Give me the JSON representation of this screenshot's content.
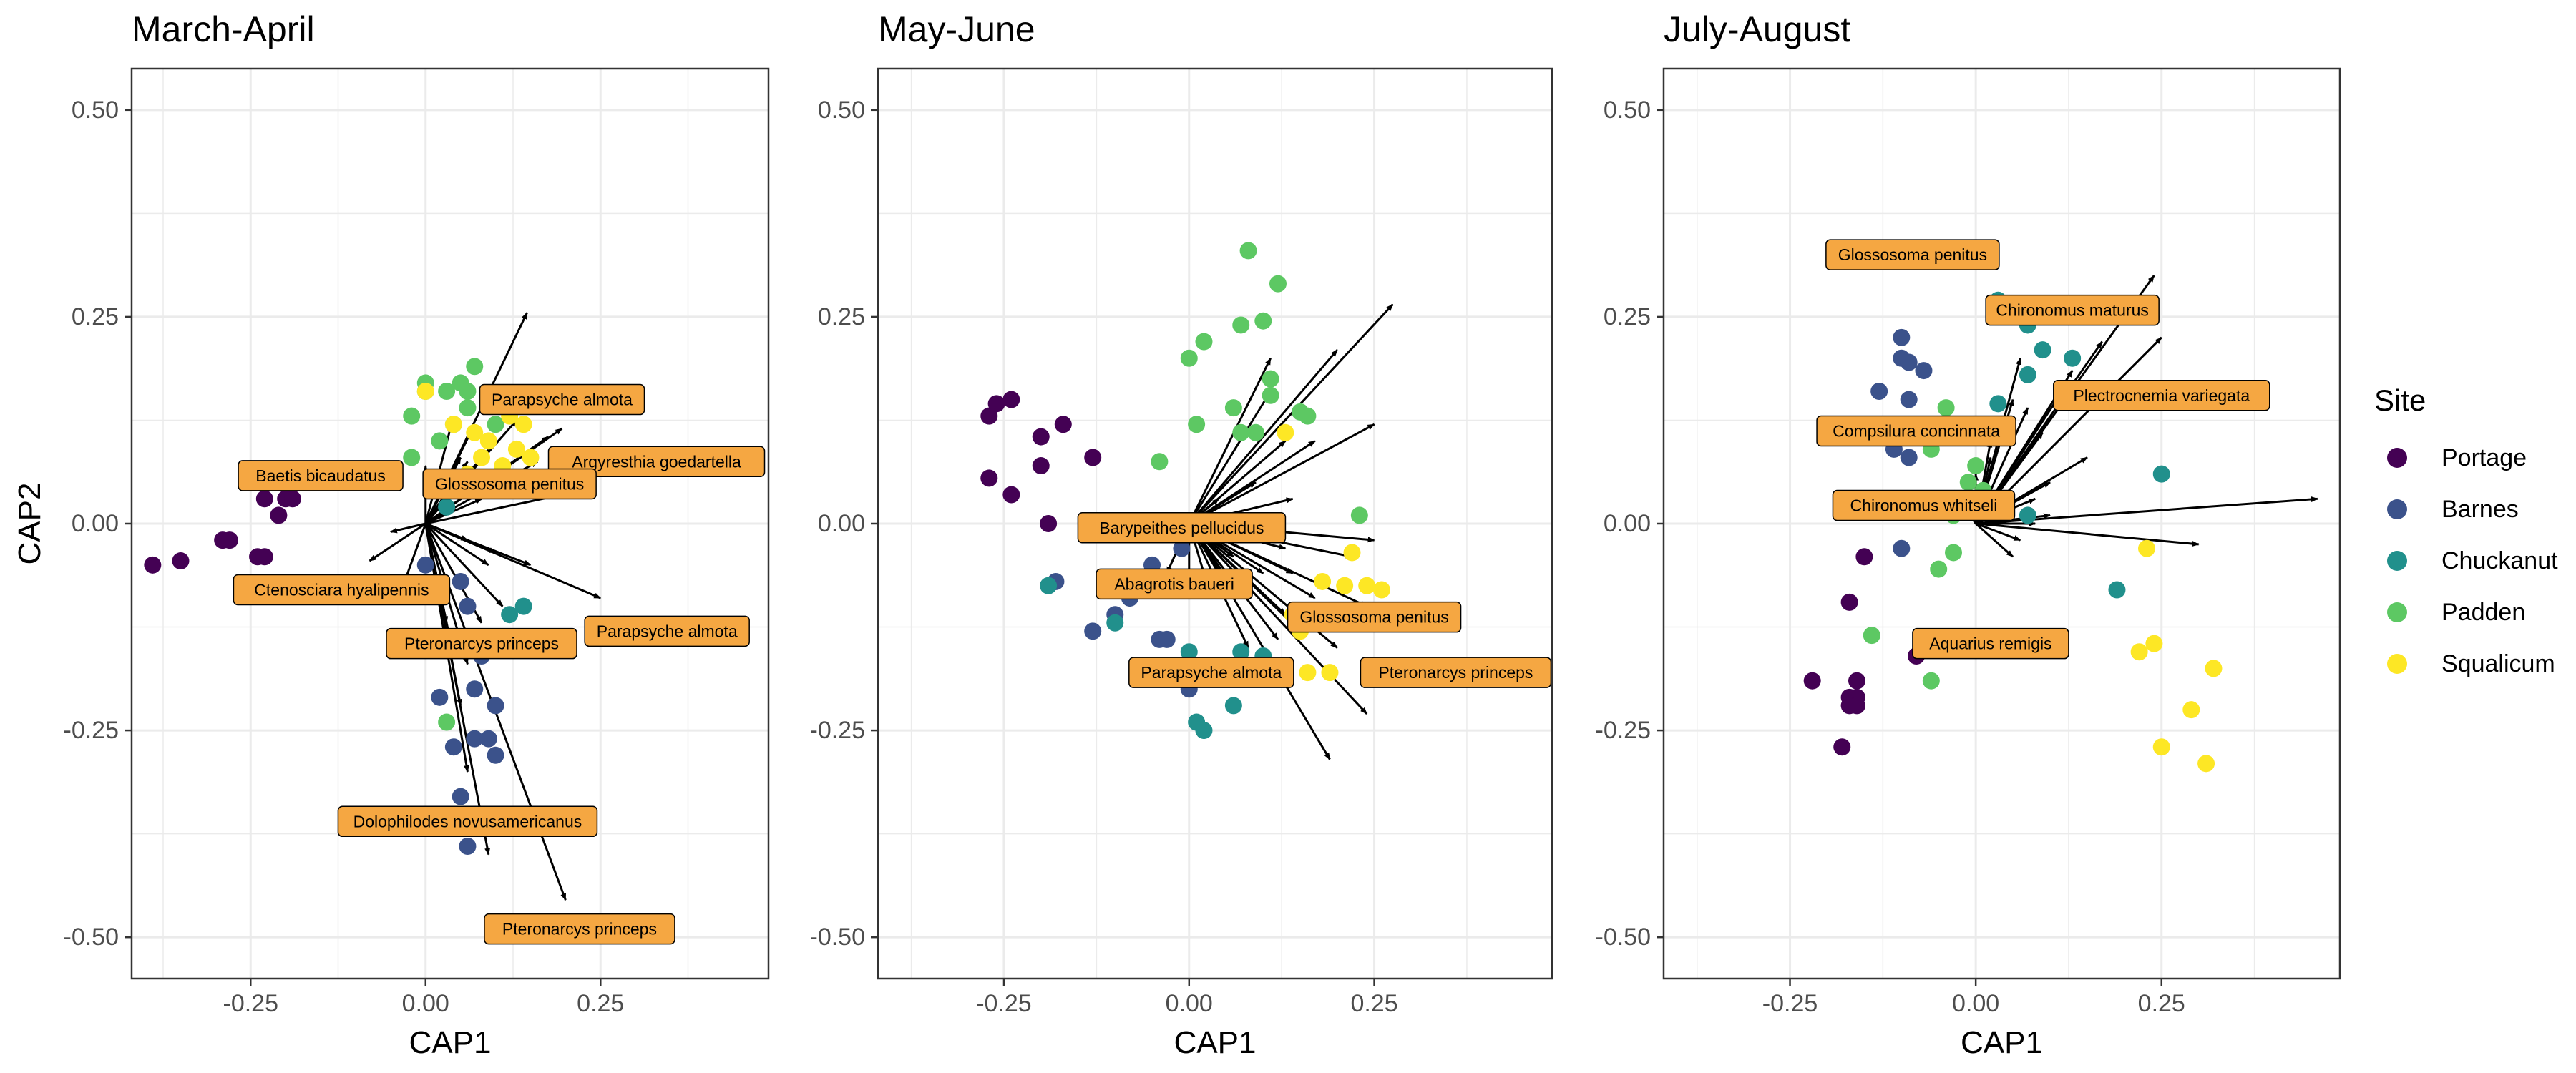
{
  "figure": {
    "y_axis_label": "CAP2",
    "legend_title": "Site"
  },
  "legend": {
    "title": "Site",
    "items": [
      {
        "name": "Portage",
        "color": "#440154"
      },
      {
        "name": "Barnes",
        "color": "#3B528B"
      },
      {
        "name": "Chuckanut",
        "color": "#21908C"
      },
      {
        "name": "Padden",
        "color": "#5DC863"
      },
      {
        "name": "Squalicum",
        "color": "#FDE725"
      }
    ]
  },
  "style": {
    "label_fill": "#F5A742",
    "arrow_color": "#000000",
    "grid_color": "#EBEBEB"
  },
  "chart_data": [
    {
      "type": "scatter",
      "title": "March-April",
      "xlabel": "CAP1",
      "ylabel": "CAP2",
      "xlim": [
        -0.42,
        0.49
      ],
      "ylim": [
        -0.55,
        0.55
      ],
      "xticks": [
        "-0.25",
        "0.00",
        "0.25"
      ],
      "yticks": [
        "0.50",
        "0.25",
        "0.00",
        "-0.25",
        "-0.50"
      ],
      "grid": true,
      "legend": "right",
      "points": {
        "Portage": [
          [
            -0.39,
            -0.05
          ],
          [
            -0.35,
            -0.045
          ],
          [
            -0.29,
            -0.02
          ],
          [
            -0.28,
            -0.02
          ],
          [
            -0.24,
            -0.04
          ],
          [
            -0.23,
            -0.04
          ],
          [
            -0.23,
            0.03
          ],
          [
            -0.22,
            0.06
          ],
          [
            -0.2,
            0.03
          ],
          [
            -0.21,
            0.01
          ],
          [
            -0.19,
            0.03
          ]
        ],
        "Barnes": [
          [
            0.0,
            -0.05
          ],
          [
            0.02,
            -0.08
          ],
          [
            0.05,
            -0.07
          ],
          [
            0.06,
            -0.1
          ],
          [
            0.03,
            -0.14
          ],
          [
            0.08,
            -0.16
          ],
          [
            0.02,
            -0.21
          ],
          [
            0.07,
            -0.2
          ],
          [
            0.1,
            -0.22
          ],
          [
            0.04,
            -0.27
          ],
          [
            0.07,
            -0.26
          ],
          [
            0.1,
            -0.28
          ],
          [
            0.05,
            -0.33
          ],
          [
            0.06,
            -0.39
          ],
          [
            0.09,
            -0.26
          ]
        ],
        "Chuckanut": [
          [
            0.12,
            -0.11
          ],
          [
            0.14,
            -0.1
          ],
          [
            0.06,
            0.04
          ],
          [
            0.03,
            0.02
          ],
          [
            0.09,
            -0.14
          ]
        ],
        "Padden": [
          [
            0.0,
            0.17
          ],
          [
            0.03,
            0.16
          ],
          [
            0.07,
            0.19
          ],
          [
            0.05,
            0.17
          ],
          [
            -0.02,
            0.08
          ],
          [
            0.02,
            0.1
          ],
          [
            0.06,
            0.14
          ],
          [
            0.04,
            0.12
          ],
          [
            0.01,
            0.05
          ],
          [
            -0.02,
            0.13
          ],
          [
            0.1,
            0.12
          ],
          [
            0.03,
            -0.24
          ],
          [
            0.06,
            0.16
          ],
          [
            0.0,
            0.16
          ]
        ],
        "Squalicum": [
          [
            0.0,
            0.16
          ],
          [
            0.04,
            0.12
          ],
          [
            0.07,
            0.11
          ],
          [
            0.09,
            0.1
          ],
          [
            0.12,
            0.13
          ],
          [
            0.14,
            0.12
          ],
          [
            0.13,
            0.09
          ],
          [
            0.11,
            0.07
          ],
          [
            0.08,
            0.08
          ],
          [
            0.06,
            0.06
          ],
          [
            0.15,
            0.08
          ],
          [
            0.13,
            0.04
          ]
        ]
      },
      "arrows": [
        [
          0.145,
          0.255
        ],
        [
          0.195,
          0.035
        ],
        [
          0.195,
          0.115
        ],
        [
          0.175,
          0.105
        ],
        [
          0.16,
          0.075
        ],
        [
          0.13,
          0.125
        ],
        [
          0.25,
          -0.09
        ],
        [
          0.1,
          -0.035
        ],
        [
          0.09,
          -0.05
        ],
        [
          0.11,
          -0.1
        ],
        [
          0.15,
          -0.05
        ],
        [
          0.2,
          -0.455
        ],
        [
          0.09,
          -0.4
        ],
        [
          0.06,
          -0.3
        ],
        [
          0.05,
          -0.22
        ],
        [
          0.04,
          -0.16
        ],
        [
          0.08,
          -0.12
        ],
        [
          0.06,
          -0.17
        ],
        [
          0.03,
          -0.12
        ],
        [
          -0.03,
          -0.07
        ],
        [
          -0.08,
          -0.045
        ],
        [
          -0.05,
          -0.01
        ],
        [
          0.0,
          0.07
        ],
        [
          0.04,
          0.13
        ],
        [
          0.07,
          0.12
        ],
        [
          0.1,
          0.1
        ],
        [
          0.06,
          0.075
        ],
        [
          0.05,
          0.08
        ],
        [
          0.08,
          0.03
        ],
        [
          0.06,
          -0.02
        ]
      ],
      "labels": [
        {
          "text": "Parapsyche almota",
          "x": 0.195,
          "y": 0.15
        },
        {
          "text": "Argyresthia goedartella",
          "x": 0.33,
          "y": 0.075
        },
        {
          "text": "Baetis bicaudatus",
          "x": -0.15,
          "y": 0.058
        },
        {
          "text": "Glossosoma penitus",
          "x": 0.12,
          "y": 0.048
        },
        {
          "text": "Ctenosciara hyalipennis",
          "x": -0.12,
          "y": -0.08
        },
        {
          "text": "Parapsyche almota",
          "x": 0.345,
          "y": -0.13
        },
        {
          "text": "Pteronarcys princeps",
          "x": 0.08,
          "y": -0.145
        },
        {
          "text": "Dolophilodes novusamericanus",
          "x": 0.06,
          "y": -0.36
        },
        {
          "text": "Pteronarcys princeps",
          "x": 0.22,
          "y": -0.49
        }
      ]
    },
    {
      "type": "scatter",
      "title": "May-June",
      "xlabel": "CAP1",
      "ylabel": "",
      "xlim": [
        -0.42,
        0.49
      ],
      "ylim": [
        -0.55,
        0.55
      ],
      "xticks": [
        "-0.25",
        "0.00",
        "0.25"
      ],
      "yticks": [
        "0.50",
        "0.25",
        "0.00",
        "-0.25",
        "-0.50"
      ],
      "grid": true,
      "legend": "right",
      "points": {
        "Portage": [
          [
            -0.27,
            0.13
          ],
          [
            -0.26,
            0.145
          ],
          [
            -0.24,
            0.15
          ],
          [
            -0.2,
            0.105
          ],
          [
            -0.17,
            0.12
          ],
          [
            -0.13,
            0.08
          ],
          [
            -0.2,
            0.07
          ],
          [
            -0.24,
            0.035
          ],
          [
            -0.27,
            0.055
          ],
          [
            -0.19,
            0.0
          ]
        ],
        "Barnes": [
          [
            -0.18,
            -0.07
          ],
          [
            -0.13,
            -0.13
          ],
          [
            -0.1,
            -0.11
          ],
          [
            -0.08,
            -0.09
          ],
          [
            -0.05,
            -0.05
          ],
          [
            -0.04,
            -0.14
          ],
          [
            -0.03,
            -0.14
          ],
          [
            0.0,
            -0.2
          ],
          [
            -0.06,
            -0.07
          ],
          [
            -0.01,
            -0.03
          ]
        ],
        "Chuckanut": [
          [
            -0.19,
            -0.075
          ],
          [
            -0.1,
            -0.12
          ],
          [
            0.0,
            -0.155
          ],
          [
            0.06,
            -0.22
          ],
          [
            0.01,
            -0.24
          ],
          [
            0.02,
            -0.25
          ],
          [
            0.07,
            -0.155
          ],
          [
            0.1,
            -0.16
          ]
        ],
        "Padden": [
          [
            0.08,
            0.33
          ],
          [
            0.12,
            0.29
          ],
          [
            0.02,
            0.22
          ],
          [
            0.07,
            0.24
          ],
          [
            0.1,
            0.245
          ],
          [
            0.0,
            0.2
          ],
          [
            0.11,
            0.175
          ],
          [
            0.11,
            0.155
          ],
          [
            0.06,
            0.14
          ],
          [
            0.15,
            0.135
          ],
          [
            0.07,
            0.11
          ],
          [
            0.09,
            0.11
          ],
          [
            0.01,
            0.12
          ],
          [
            -0.04,
            0.075
          ],
          [
            0.16,
            0.13
          ],
          [
            0.23,
            0.01
          ]
        ],
        "Squalicum": [
          [
            0.22,
            -0.035
          ],
          [
            0.24,
            -0.075
          ],
          [
            0.21,
            -0.075
          ],
          [
            0.26,
            -0.08
          ],
          [
            0.14,
            -0.11
          ],
          [
            0.15,
            -0.13
          ],
          [
            0.16,
            -0.18
          ],
          [
            0.19,
            -0.18
          ],
          [
            0.18,
            -0.07
          ],
          [
            0.13,
            0.11
          ]
        ]
      },
      "arrows": [
        [
          0.275,
          0.265
        ],
        [
          0.2,
          0.21
        ],
        [
          0.11,
          0.2
        ],
        [
          0.11,
          0.16
        ],
        [
          0.25,
          0.12
        ],
        [
          0.17,
          0.1
        ],
        [
          0.14,
          0.03
        ],
        [
          0.25,
          -0.02
        ],
        [
          0.13,
          -0.03
        ],
        [
          0.24,
          -0.1
        ],
        [
          0.24,
          -0.23
        ],
        [
          0.19,
          -0.285
        ],
        [
          0.13,
          -0.11
        ],
        [
          0.08,
          -0.15
        ],
        [
          0.06,
          -0.04
        ],
        [
          0.1,
          -0.06
        ],
        [
          0.05,
          -0.07
        ],
        [
          0.03,
          -0.09
        ],
        [
          0.0,
          -0.08
        ],
        [
          -0.03,
          -0.06
        ],
        [
          0.17,
          -0.09
        ],
        [
          0.14,
          -0.06
        ],
        [
          0.12,
          -0.14
        ],
        [
          0.2,
          -0.15
        ],
        [
          0.15,
          -0.13
        ],
        [
          0.09,
          0.05
        ],
        [
          0.04,
          0.03
        ],
        [
          0.13,
          0.1
        ],
        [
          0.07,
          -0.09
        ],
        [
          0.22,
          -0.04
        ]
      ],
      "labels": [
        {
          "text": "Barypeithes pellucidus",
          "x": -0.01,
          "y": -0.005
        },
        {
          "text": "Abagrotis baueri",
          "x": -0.02,
          "y": -0.073
        },
        {
          "text": "Glossosoma penitus",
          "x": 0.25,
          "y": -0.113
        },
        {
          "text": "Parapsyche almota",
          "x": 0.03,
          "y": -0.18
        },
        {
          "text": "Pteronarcys princeps",
          "x": 0.36,
          "y": -0.18
        }
      ]
    },
    {
      "type": "scatter",
      "title": "July-August",
      "xlabel": "CAP1",
      "ylabel": "",
      "xlim": [
        -0.42,
        0.49
      ],
      "ylim": [
        -0.55,
        0.55
      ],
      "xticks": [
        "-0.25",
        "0.00",
        "0.25"
      ],
      "yticks": [
        "0.50",
        "0.25",
        "0.00",
        "-0.25",
        "-0.50"
      ],
      "grid": true,
      "legend": "right",
      "points": {
        "Portage": [
          [
            -0.15,
            -0.04
          ],
          [
            -0.17,
            -0.095
          ],
          [
            -0.16,
            -0.19
          ],
          [
            -0.17,
            -0.21
          ],
          [
            -0.16,
            -0.21
          ],
          [
            -0.17,
            -0.22
          ],
          [
            -0.16,
            -0.22
          ],
          [
            -0.22,
            -0.19
          ],
          [
            -0.18,
            -0.27
          ],
          [
            -0.08,
            -0.16
          ]
        ],
        "Barnes": [
          [
            -0.1,
            0.225
          ],
          [
            -0.1,
            0.2
          ],
          [
            -0.09,
            0.195
          ],
          [
            -0.07,
            0.185
          ],
          [
            -0.13,
            0.16
          ],
          [
            -0.09,
            0.15
          ],
          [
            -0.08,
            0.115
          ],
          [
            -0.11,
            0.09
          ],
          [
            -0.09,
            0.08
          ],
          [
            -0.1,
            -0.03
          ]
        ],
        "Chuckanut": [
          [
            0.07,
            0.24
          ],
          [
            0.09,
            0.21
          ],
          [
            0.07,
            0.18
          ],
          [
            0.13,
            0.2
          ],
          [
            0.15,
            0.16
          ],
          [
            0.07,
            0.01
          ],
          [
            0.25,
            0.06
          ],
          [
            0.19,
            -0.08
          ],
          [
            0.03,
            0.145
          ],
          [
            0.03,
            0.27
          ]
        ],
        "Padden": [
          [
            -0.04,
            0.14
          ],
          [
            -0.02,
            0.11
          ],
          [
            -0.06,
            0.09
          ],
          [
            0.0,
            0.07
          ],
          [
            -0.01,
            0.05
          ],
          [
            -0.03,
            -0.035
          ],
          [
            -0.05,
            -0.055
          ],
          [
            -0.14,
            -0.135
          ],
          [
            -0.06,
            -0.19
          ],
          [
            -0.03,
            0.01
          ],
          [
            0.01,
            0.04
          ]
        ],
        "Squalicum": [
          [
            0.23,
            -0.03
          ],
          [
            0.22,
            -0.155
          ],
          [
            0.24,
            -0.145
          ],
          [
            0.32,
            -0.175
          ],
          [
            0.29,
            -0.225
          ],
          [
            0.25,
            -0.27
          ],
          [
            0.31,
            -0.29
          ]
        ]
      },
      "arrows": [
        [
          0.46,
          0.03
        ],
        [
          0.3,
          -0.025
        ],
        [
          0.24,
          0.3
        ],
        [
          0.25,
          0.225
        ],
        [
          0.17,
          0.22
        ],
        [
          0.13,
          0.185
        ],
        [
          0.12,
          0.165
        ],
        [
          0.06,
          0.2
        ],
        [
          0.15,
          0.08
        ],
        [
          0.1,
          0.05
        ],
        [
          0.08,
          0.03
        ],
        [
          0.05,
          -0.04
        ],
        [
          0.02,
          0.08
        ],
        [
          0.02,
          0.1
        ],
        [
          0.0,
          0.06
        ],
        [
          -0.03,
          0.04
        ],
        [
          0.01,
          0.02
        ],
        [
          0.04,
          0.12
        ],
        [
          0.06,
          -0.02
        ],
        [
          0.08,
          0.0
        ],
        [
          0.1,
          0.01
        ],
        [
          0.05,
          0.15
        ],
        [
          0.09,
          0.11
        ],
        [
          0.07,
          0.14
        ]
      ],
      "labels": [
        {
          "text": "Glossosoma penitus",
          "x": -0.085,
          "y": 0.325
        },
        {
          "text": "Chironomus maturus",
          "x": 0.13,
          "y": 0.258
        },
        {
          "text": "Plectrocnemia variegata",
          "x": 0.25,
          "y": 0.155
        },
        {
          "text": "Compsilura concinnata",
          "x": -0.08,
          "y": 0.112
        },
        {
          "text": "Chironomus whitseli",
          "x": -0.07,
          "y": 0.022
        },
        {
          "text": "Aquarius remigis",
          "x": 0.02,
          "y": -0.145
        }
      ]
    }
  ]
}
